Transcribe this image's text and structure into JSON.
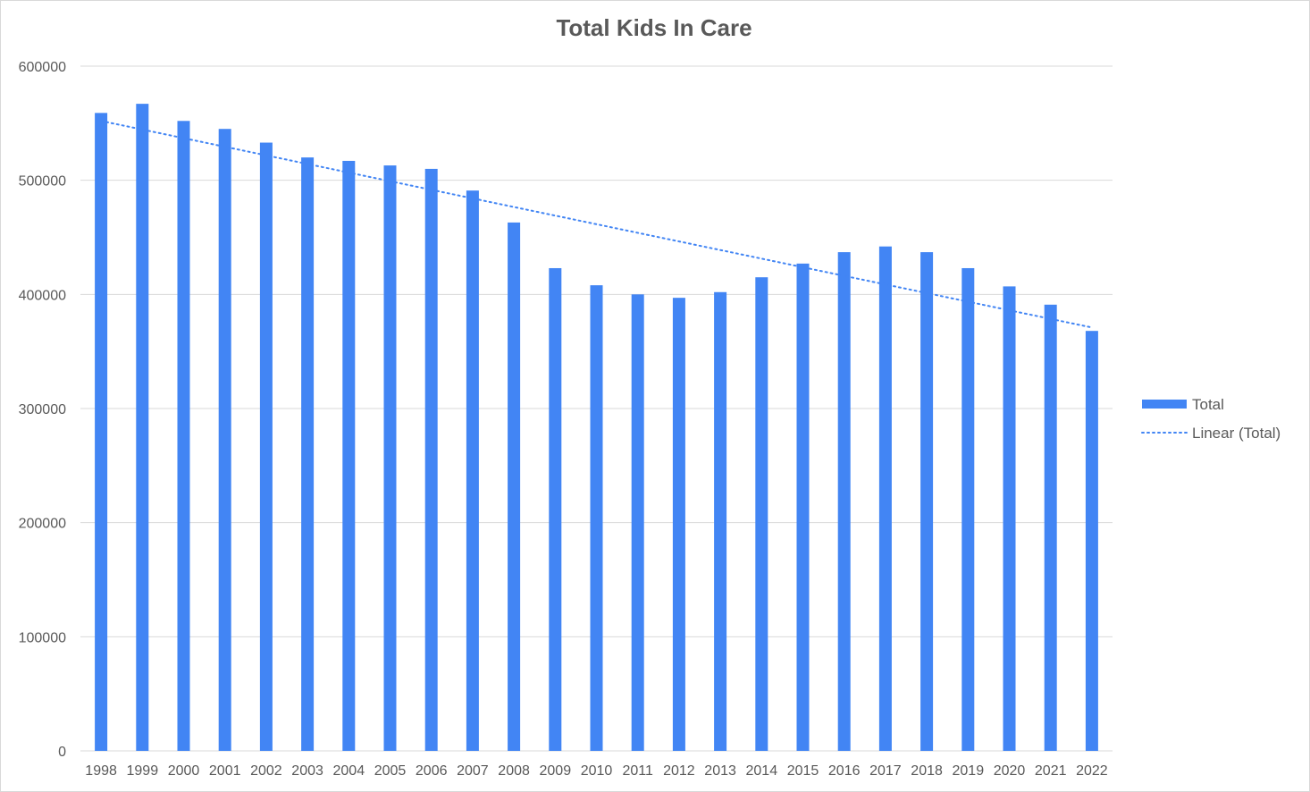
{
  "chart_data": {
    "type": "bar",
    "title": "Total Kids In Care",
    "xlabel": "",
    "ylabel": "",
    "ylim": [
      0,
      600000
    ],
    "y_ticks": [
      "0",
      "100000",
      "200000",
      "300000",
      "400000",
      "500000",
      "600000"
    ],
    "grid": true,
    "legend_position": "right",
    "categories": [
      "1998",
      "1999",
      "2000",
      "2001",
      "2002",
      "2003",
      "2004",
      "2005",
      "2006",
      "2007",
      "2008",
      "2009",
      "2010",
      "2011",
      "2012",
      "2013",
      "2014",
      "2015",
      "2016",
      "2017",
      "2018",
      "2019",
      "2020",
      "2021",
      "2022"
    ],
    "series": [
      {
        "name": "Total",
        "color": "#4285f4",
        "values": [
          559000,
          567000,
          552000,
          545000,
          533000,
          520000,
          517000,
          513000,
          510000,
          491000,
          463000,
          423000,
          408000,
          400000,
          397000,
          402000,
          415000,
          427000,
          437000,
          442000,
          437000,
          423000,
          407000,
          391000,
          368000
        ]
      }
    ],
    "trendline": {
      "name": "Linear (Total)",
      "type": "linear",
      "color": "#4285f4",
      "start": 552000,
      "end": 371000
    }
  }
}
